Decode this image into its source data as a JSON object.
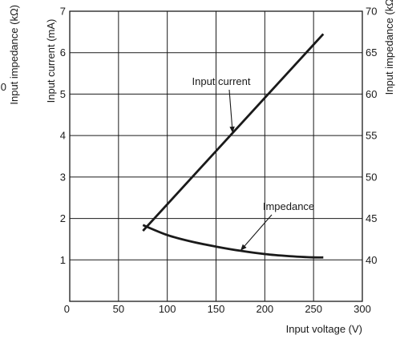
{
  "chart_data": {
    "type": "line",
    "xlabel": "Input voltage (V)",
    "ylabel_left": "Input current (mA)",
    "ylabel_right": "Input impedance (kΩ)",
    "ylabel_right_clipped": "Input impedance (kΩ)",
    "ylabel_right_clipped_tick": "0",
    "xlim": [
      0,
      300
    ],
    "ylim_left": [
      0,
      7
    ],
    "ylim_right": [
      35,
      70
    ],
    "x_ticks": [
      "0",
      "50",
      "100",
      "150",
      "200",
      "250",
      "300"
    ],
    "y_left_ticks": [
      "1",
      "2",
      "3",
      "4",
      "5",
      "6",
      "7"
    ],
    "y_right_ticks": [
      "40",
      "45",
      "50",
      "55",
      "60",
      "65",
      "70"
    ],
    "grid": true,
    "series": [
      {
        "name": "Input current",
        "axis": "left",
        "x": [
          75,
          260
        ],
        "y": [
          1.7,
          6.45
        ]
      },
      {
        "name": "Impedance",
        "axis": "right",
        "x": [
          75,
          100,
          125,
          150,
          175,
          200,
          225,
          250,
          260
        ],
        "y": [
          44.2,
          43.0,
          42.2,
          41.6,
          41.1,
          40.7,
          40.45,
          40.3,
          40.3
        ]
      }
    ],
    "annotations": [
      {
        "label": "Input current",
        "series": "Input current",
        "at_x": 167
      },
      {
        "label": "Impedance",
        "series": "Impedance",
        "at_x": 175
      }
    ]
  }
}
